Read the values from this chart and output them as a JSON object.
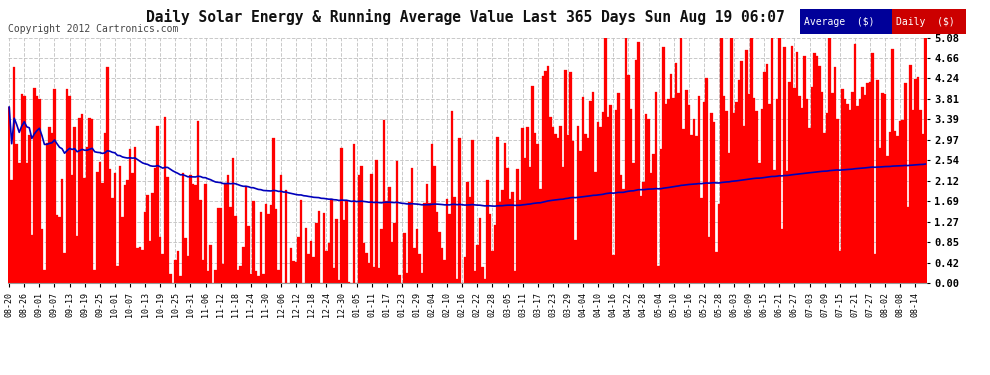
{
  "title": "Daily Solar Energy & Running Average Value Last 365 Days Sun Aug 19 06:07",
  "copyright": "Copyright 2012 Cartronics.com",
  "ylabel_right": [
    "0.00",
    "0.42",
    "0.85",
    "1.27",
    "1.69",
    "2.12",
    "2.54",
    "2.97",
    "3.39",
    "3.81",
    "4.24",
    "4.66",
    "5.08"
  ],
  "yticks": [
    0.0,
    0.42,
    0.85,
    1.27,
    1.69,
    2.12,
    2.54,
    2.97,
    3.39,
    3.81,
    4.24,
    4.66,
    5.08
  ],
  "ymax": 5.08,
  "bar_color": "#FF0000",
  "avg_line_color": "#0000BB",
  "background_color": "#FFFFFF",
  "grid_color": "#BBBBBB",
  "title_fontsize": 11,
  "legend_avg_color": "#000099",
  "legend_daily_color": "#CC0000",
  "x_labels": [
    "08-20",
    "08-26",
    "09-01",
    "09-07",
    "09-13",
    "09-19",
    "09-25",
    "10-01",
    "10-07",
    "10-13",
    "10-19",
    "10-25",
    "10-31",
    "11-06",
    "11-12",
    "11-18",
    "11-24",
    "11-30",
    "12-06",
    "12-12",
    "12-18",
    "12-24",
    "12-30",
    "01-05",
    "01-11",
    "01-17",
    "01-23",
    "01-29",
    "02-04",
    "02-10",
    "02-16",
    "02-22",
    "02-28",
    "03-05",
    "03-11",
    "03-17",
    "03-23",
    "03-29",
    "04-04",
    "04-10",
    "04-16",
    "04-22",
    "04-28",
    "05-04",
    "05-10",
    "05-16",
    "05-22",
    "05-28",
    "06-03",
    "06-09",
    "06-15",
    "06-21",
    "06-27",
    "07-03",
    "07-09",
    "07-15",
    "07-21",
    "07-27",
    "08-02",
    "08-08",
    "08-14"
  ]
}
